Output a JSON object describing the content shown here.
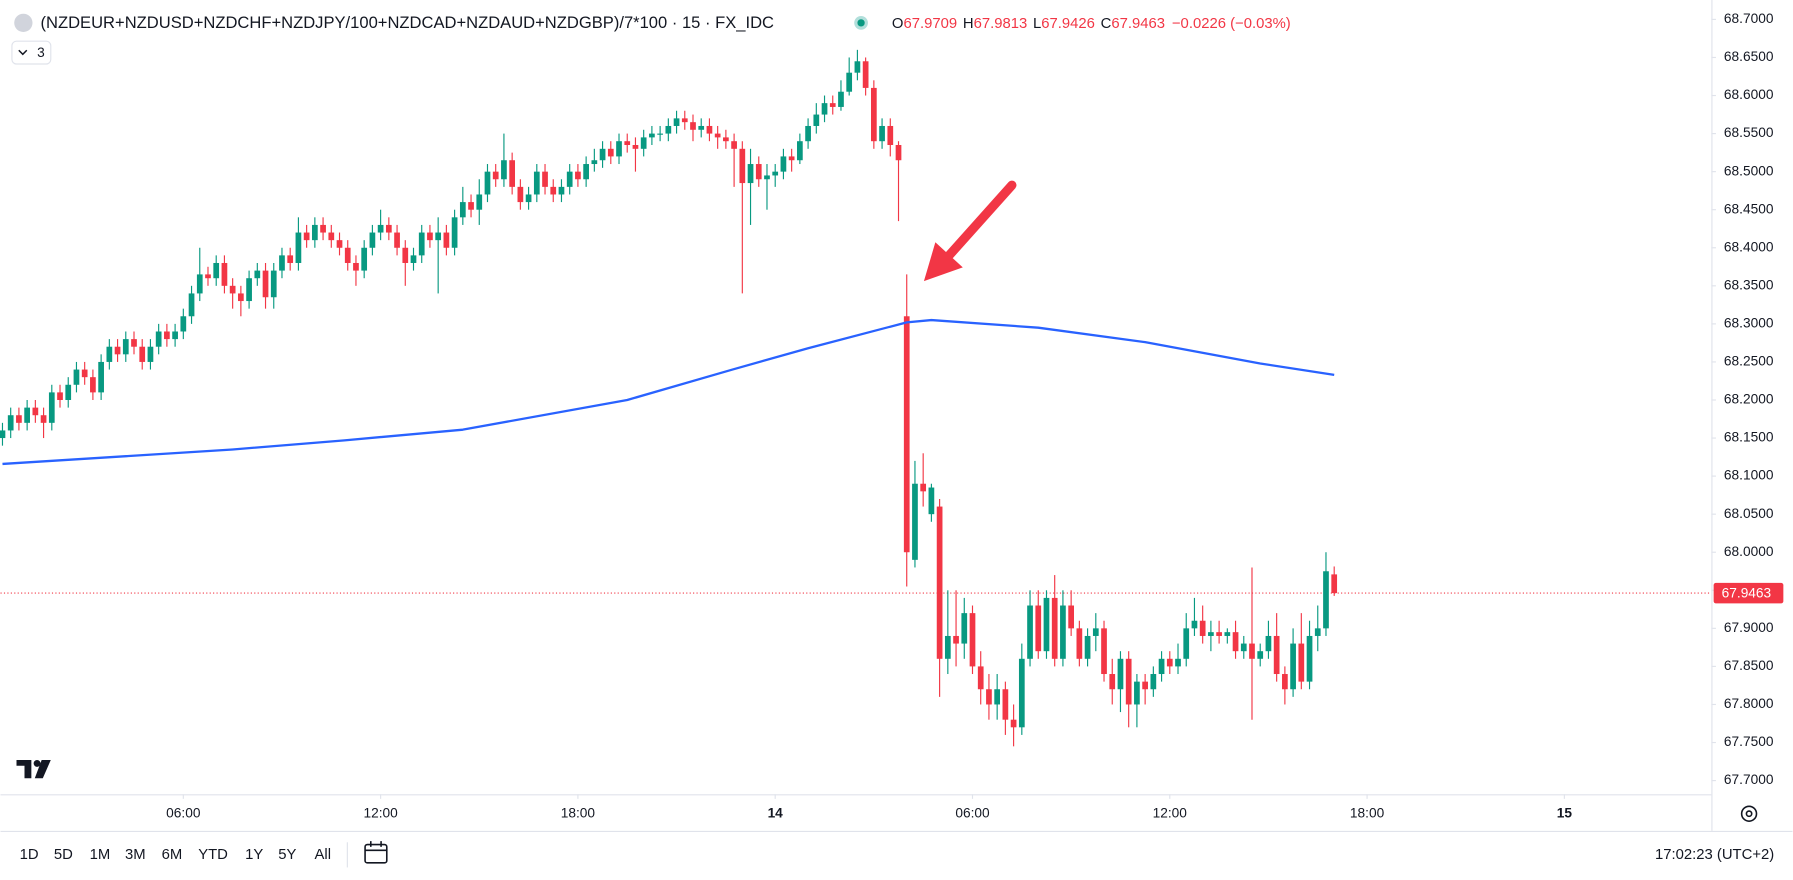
{
  "chart_data": {
    "type": "candlestick",
    "title": "(NZDEUR+NZDUSD+NZDCHF+NZDJPY/100+NZDCAD+NZDAUD+NZDGBP)/7*100 · 15 · FX_IDC",
    "ohlc_labels": [
      "O",
      "H",
      "L",
      "C"
    ],
    "change": "−0.0226 (−0.03%)",
    "indicator_count": 3,
    "up_color": "#089981",
    "down_color": "#f23645",
    "x": [
      0.5,
      0.75,
      1,
      1.25,
      1.5,
      1.75,
      2,
      2.25,
      2.5,
      2.75,
      3,
      3.25,
      3.5,
      3.75,
      4,
      4.25,
      4.5,
      4.75,
      5,
      5.25,
      5.5,
      5.75,
      6,
      6.25,
      6.5,
      6.75,
      7,
      7.25,
      7.5,
      7.75,
      8,
      8.25,
      8.5,
      8.75,
      9,
      9.25,
      9.5,
      9.75,
      10,
      10.25,
      10.5,
      10.75,
      11,
      11.25,
      11.5,
      11.75,
      12,
      12.25,
      12.5,
      12.75,
      13,
      13.25,
      13.5,
      13.75,
      14,
      14.25,
      14.5,
      14.75,
      15,
      15.25,
      15.5,
      15.75,
      16,
      16.25,
      16.5,
      16.75,
      17,
      17.25,
      17.5,
      17.75,
      18,
      18.25,
      18.5,
      18.75,
      19,
      19.25,
      19.5,
      19.75,
      20,
      20.25,
      20.5,
      20.75,
      21,
      21.25,
      21.5,
      21.75,
      22,
      22.25,
      22.5,
      22.75,
      23,
      23.25,
      23.5,
      23.75,
      24,
      24.25,
      24.5,
      24.75,
      25,
      25.25,
      25.5,
      25.75,
      26,
      26.25,
      26.5,
      26.75,
      27,
      27.25,
      27.5,
      27.75,
      28,
      28.25,
      28.5,
      28.75,
      29,
      29.25,
      29.5,
      29.75,
      30,
      30.25,
      30.5,
      30.75,
      31,
      31.25,
      31.5,
      31.75,
      32,
      32.25,
      32.5,
      32.75,
      33,
      33.25,
      33.5,
      33.75,
      34,
      34.25,
      34.5,
      34.75,
      35,
      35.25,
      35.5,
      35.75,
      36,
      36.25,
      36.5,
      36.75,
      37,
      37.25,
      37.5,
      37.75,
      38,
      38.25,
      38.5,
      38.75,
      39,
      39.25,
      39.5,
      39.75,
      40,
      40.25,
      40.5,
      40.75,
      41
    ],
    "open": [
      68.15,
      68.16,
      68.18,
      68.17,
      68.19,
      68.18,
      68.17,
      68.21,
      68.2,
      68.22,
      68.24,
      68.23,
      68.21,
      68.25,
      68.27,
      68.26,
      68.28,
      68.27,
      68.25,
      68.27,
      68.29,
      68.28,
      68.29,
      68.31,
      68.34,
      68.365,
      68.36,
      68.38,
      68.35,
      68.34,
      68.33,
      68.36,
      68.37,
      68.335,
      68.37,
      68.39,
      68.38,
      68.42,
      68.41,
      68.43,
      68.42,
      68.41,
      68.4,
      68.38,
      68.37,
      68.4,
      68.42,
      68.43,
      68.42,
      68.4,
      68.38,
      68.39,
      68.42,
      68.41,
      68.42,
      68.4,
      68.44,
      68.46,
      68.45,
      68.47,
      68.5,
      68.49,
      68.515,
      68.48,
      68.46,
      68.47,
      68.5,
      68.48,
      68.47,
      68.48,
      68.5,
      68.49,
      68.51,
      68.515,
      68.53,
      68.52,
      68.54,
      68.535,
      68.53,
      68.545,
      68.55,
      68.55,
      68.56,
      68.57,
      68.565,
      68.555,
      68.56,
      68.55,
      68.545,
      68.54,
      68.53,
      68.485,
      68.51,
      68.49,
      68.495,
      68.5,
      68.52,
      68.515,
      68.54,
      68.56,
      68.575,
      68.59,
      68.585,
      68.605,
      68.63,
      68.645,
      68.61,
      68.54,
      68.56,
      68.535,
      68.31,
      67.99,
      68.09,
      68.05,
      68.06,
      67.86,
      67.89,
      67.88,
      67.92,
      67.85,
      67.82,
      67.8,
      67.82,
      67.78,
      67.77,
      67.86,
      67.93,
      67.87,
      67.94,
      67.86,
      67.93,
      67.9,
      67.86,
      67.89,
      67.9,
      67.84,
      67.82,
      67.86,
      67.8,
      67.83,
      67.82,
      67.84,
      67.86,
      67.85,
      67.86,
      67.9,
      67.91,
      67.89,
      67.895,
      67.89,
      67.895,
      67.87,
      67.88,
      67.86,
      67.87,
      67.89,
      67.84,
      67.82,
      67.88,
      67.83,
      67.89,
      67.9,
      67.9709
    ],
    "high": [
      68.17,
      68.19,
      68.19,
      68.2,
      68.2,
      68.19,
      68.22,
      68.22,
      68.23,
      68.25,
      68.25,
      68.24,
      68.26,
      68.28,
      68.28,
      68.29,
      68.29,
      68.28,
      68.28,
      68.3,
      68.3,
      68.3,
      68.32,
      68.35,
      68.4,
      68.375,
      68.39,
      68.39,
      68.36,
      68.35,
      68.37,
      68.38,
      68.38,
      68.38,
      68.4,
      68.4,
      68.44,
      68.43,
      68.44,
      68.44,
      68.43,
      68.42,
      68.41,
      68.39,
      68.41,
      68.43,
      68.45,
      68.44,
      68.43,
      68.41,
      68.4,
      68.43,
      68.43,
      68.44,
      68.43,
      68.45,
      68.48,
      68.47,
      68.49,
      68.51,
      68.51,
      68.55,
      68.525,
      68.49,
      68.48,
      68.51,
      68.51,
      68.49,
      68.49,
      68.51,
      68.51,
      68.52,
      68.53,
      68.54,
      68.54,
      68.55,
      68.55,
      68.545,
      68.555,
      68.56,
      68.56,
      68.57,
      68.58,
      68.58,
      68.575,
      68.57,
      68.57,
      68.56,
      68.555,
      68.55,
      68.54,
      68.53,
      68.52,
      68.51,
      68.51,
      68.53,
      68.53,
      68.55,
      68.57,
      68.59,
      68.6,
      68.6,
      68.62,
      68.65,
      68.66,
      68.65,
      68.62,
      68.57,
      68.57,
      68.54,
      68.365,
      68.12,
      68.13,
      68.09,
      68.07,
      67.95,
      67.95,
      67.94,
      67.93,
      67.87,
      67.84,
      67.84,
      67.83,
      67.8,
      67.88,
      67.95,
      67.95,
      67.95,
      67.97,
      67.95,
      67.95,
      67.91,
      67.9,
      67.92,
      67.91,
      67.86,
      67.87,
      67.87,
      67.84,
      67.84,
      67.85,
      67.87,
      67.87,
      67.88,
      67.92,
      67.94,
      67.93,
      67.91,
      67.91,
      67.9,
      67.91,
      67.89,
      67.98,
      67.88,
      67.91,
      67.92,
      67.85,
      67.9,
      67.92,
      67.91,
      67.93,
      68.0,
      67.9813
    ],
    "low": [
      68.14,
      68.15,
      68.16,
      68.16,
      68.17,
      68.15,
      68.16,
      68.19,
      68.19,
      68.21,
      68.22,
      68.2,
      68.2,
      68.24,
      68.25,
      68.25,
      68.26,
      68.24,
      68.24,
      68.26,
      68.27,
      68.27,
      68.28,
      68.3,
      68.33,
      68.35,
      68.35,
      68.34,
      68.32,
      68.31,
      68.32,
      68.35,
      68.32,
      68.32,
      68.36,
      68.37,
      68.37,
      68.4,
      68.4,
      68.41,
      68.4,
      68.39,
      68.37,
      68.35,
      68.36,
      68.39,
      68.41,
      68.41,
      68.39,
      68.35,
      68.37,
      68.38,
      68.4,
      68.34,
      68.39,
      68.39,
      68.43,
      68.44,
      68.43,
      68.46,
      68.48,
      68.48,
      68.47,
      68.45,
      68.45,
      68.46,
      68.47,
      68.46,
      68.46,
      68.47,
      68.48,
      68.48,
      68.5,
      68.505,
      68.51,
      68.51,
      68.525,
      68.5,
      68.52,
      68.535,
      68.54,
      68.54,
      68.55,
      68.555,
      68.54,
      68.545,
      68.54,
      68.53,
      68.53,
      68.48,
      68.34,
      68.43,
      68.48,
      68.45,
      68.48,
      68.49,
      68.5,
      68.51,
      68.53,
      68.55,
      68.565,
      68.575,
      68.58,
      68.6,
      68.62,
      68.6,
      68.53,
      68.53,
      68.52,
      68.435,
      67.955,
      67.98,
      68.06,
      68.04,
      67.81,
      67.84,
      67.85,
      67.86,
      67.84,
      67.8,
      67.78,
      67.78,
      67.76,
      67.745,
      67.76,
      67.85,
      67.86,
      67.86,
      67.85,
      67.85,
      67.89,
      67.85,
      67.85,
      67.87,
      67.83,
      67.8,
      67.79,
      67.77,
      67.77,
      67.8,
      67.81,
      67.83,
      67.84,
      67.84,
      67.85,
      67.89,
      67.88,
      67.87,
      67.88,
      67.88,
      67.86,
      67.86,
      67.78,
      67.85,
      67.86,
      67.83,
      67.8,
      67.81,
      67.82,
      67.82,
      67.87,
      67.89,
      67.9426
    ],
    "close": [
      68.16,
      68.18,
      68.17,
      68.19,
      68.18,
      68.17,
      68.21,
      68.2,
      68.22,
      68.24,
      68.23,
      68.21,
      68.25,
      68.27,
      68.26,
      68.28,
      68.27,
      68.25,
      68.27,
      68.29,
      68.28,
      68.29,
      68.31,
      68.34,
      68.365,
      68.36,
      68.38,
      68.35,
      68.34,
      68.33,
      68.36,
      68.37,
      68.335,
      68.37,
      68.39,
      68.38,
      68.42,
      68.41,
      68.43,
      68.42,
      68.41,
      68.4,
      68.38,
      68.37,
      68.4,
      68.42,
      68.43,
      68.42,
      68.4,
      68.38,
      68.39,
      68.42,
      68.41,
      68.42,
      68.4,
      68.44,
      68.46,
      68.45,
      68.47,
      68.5,
      68.49,
      68.515,
      68.48,
      68.46,
      68.47,
      68.5,
      68.48,
      68.47,
      68.48,
      68.5,
      68.49,
      68.51,
      68.515,
      68.53,
      68.52,
      68.54,
      68.535,
      68.53,
      68.545,
      68.55,
      68.55,
      68.56,
      68.57,
      68.565,
      68.555,
      68.56,
      68.55,
      68.545,
      68.54,
      68.53,
      68.485,
      68.51,
      68.49,
      68.495,
      68.5,
      68.52,
      68.515,
      68.54,
      68.56,
      68.575,
      68.59,
      68.585,
      68.605,
      68.63,
      68.645,
      68.61,
      68.54,
      68.56,
      68.535,
      68.515,
      68.0,
      68.09,
      68.08,
      68.085,
      67.86,
      67.89,
      67.88,
      67.92,
      67.85,
      67.82,
      67.8,
      67.82,
      67.78,
      67.77,
      67.86,
      67.93,
      67.87,
      67.94,
      67.86,
      67.93,
      67.9,
      67.86,
      67.89,
      67.9,
      67.84,
      67.82,
      67.86,
      67.8,
      67.83,
      67.82,
      67.84,
      67.86,
      67.85,
      67.86,
      67.9,
      67.91,
      67.89,
      67.895,
      67.89,
      67.895,
      67.87,
      67.88,
      67.86,
      67.87,
      67.89,
      67.84,
      67.82,
      67.88,
      67.83,
      67.89,
      67.9,
      67.975,
      67.9463
    ],
    "series": [
      {
        "type": "line",
        "color": "#2962ff",
        "x": [
          0.5,
          7.5,
          10.9,
          14.5,
          19.5,
          22.7,
          25,
          28,
          28.75,
          32,
          35.25,
          38.75,
          41
        ],
        "values": [
          68.116,
          68.135,
          68.147,
          68.161,
          68.2,
          68.24,
          68.268,
          68.302,
          68.305,
          68.295,
          68.276,
          68.248,
          68.233
        ]
      }
    ],
    "last_price_color": "#f23645",
    "xlim": [
      0.44,
      52.47
    ],
    "xticks": [
      {
        "value": 6,
        "label": "06:00"
      },
      {
        "value": 12,
        "label": "12:00"
      },
      {
        "value": 18,
        "label": "18:00"
      },
      {
        "value": 24,
        "label": "14"
      },
      {
        "value": 30,
        "label": "06:00"
      },
      {
        "value": 36,
        "label": "12:00"
      },
      {
        "value": 42,
        "label": "18:00"
      },
      {
        "value": 48,
        "label": "15"
      }
    ],
    "ylim": [
      67.682,
      68.7255
    ],
    "yticks": [
      {
        "value": 67.7,
        "label": "67.7000"
      },
      {
        "value": 67.75,
        "label": "67.7500"
      },
      {
        "value": 67.8,
        "label": "67.8000"
      },
      {
        "value": 67.85,
        "label": "67.8500"
      },
      {
        "value": 67.9,
        "label": "67.9000"
      },
      {
        "value": 67.95,
        "label": "67.9500"
      },
      {
        "value": 68,
        "label": "68.0000"
      },
      {
        "value": 68.05,
        "label": "68.0500"
      },
      {
        "value": 68.1,
        "label": "68.1000"
      },
      {
        "value": 68.15,
        "label": "68.1500"
      },
      {
        "value": 68.2,
        "label": "68.2000"
      },
      {
        "value": 68.25,
        "label": "68.2500"
      },
      {
        "value": 68.3,
        "label": "68.3000"
      },
      {
        "value": 68.35,
        "label": "68.3500"
      },
      {
        "value": 68.4,
        "label": "68.4000"
      },
      {
        "value": 68.45,
        "label": "68.4500"
      },
      {
        "value": 68.5,
        "label": "68.5000"
      },
      {
        "value": 68.55,
        "label": "68.5500"
      },
      {
        "value": 68.6,
        "label": "68.6000"
      },
      {
        "value": 68.65,
        "label": "68.6500"
      },
      {
        "value": 68.7,
        "label": "68.7000"
      }
    ],
    "grid": false
  },
  "toolbar": {
    "ranges": [
      "1D",
      "5D",
      "1M",
      "3M",
      "6M",
      "YTD",
      "1Y",
      "5Y",
      "All"
    ],
    "clock": "17:02:23 (UTC+2)"
  }
}
